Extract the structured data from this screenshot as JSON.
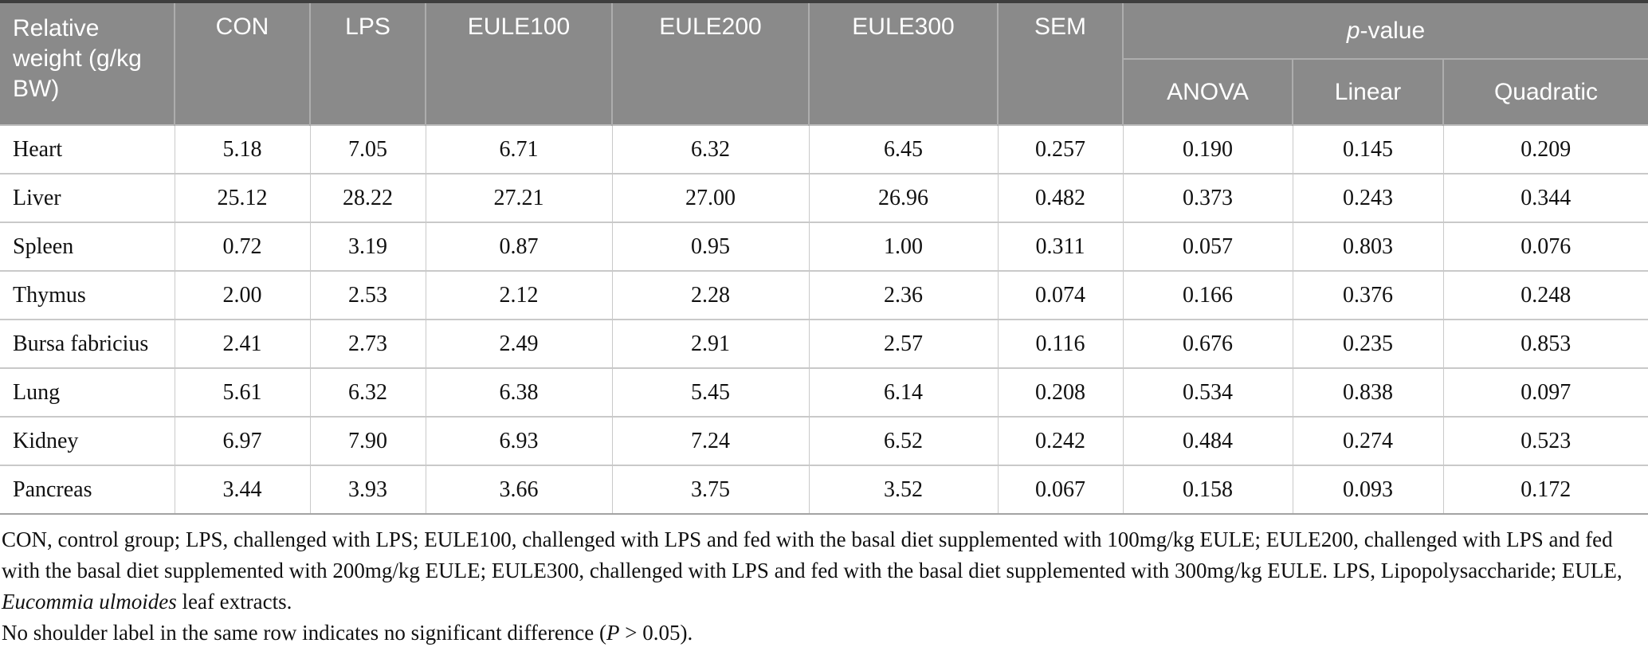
{
  "table": {
    "header": {
      "row_label": "Relative weight (g/kg BW)",
      "columns": [
        "CON",
        "LPS",
        "EULE100",
        "EULE200",
        "EULE300",
        "SEM"
      ],
      "p_value": {
        "italic": "p",
        "rest": "-value",
        "subcolumns": [
          "ANOVA",
          "Linear",
          "Quadratic"
        ]
      }
    },
    "rows": [
      {
        "organ": "Heart",
        "values": [
          "5.18",
          "7.05",
          "6.71",
          "6.32",
          "6.45",
          "0.257",
          "0.190",
          "0.145",
          "0.209"
        ]
      },
      {
        "organ": "Liver",
        "values": [
          "25.12",
          "28.22",
          "27.21",
          "27.00",
          "26.96",
          "0.482",
          "0.373",
          "0.243",
          "0.344"
        ]
      },
      {
        "organ": "Spleen",
        "values": [
          "0.72",
          "3.19",
          "0.87",
          "0.95",
          "1.00",
          "0.311",
          "0.057",
          "0.803",
          "0.076"
        ]
      },
      {
        "organ": "Thymus",
        "values": [
          "2.00",
          "2.53",
          "2.12",
          "2.28",
          "2.36",
          "0.074",
          "0.166",
          "0.376",
          "0.248"
        ]
      },
      {
        "organ": "Bursa fabricius",
        "values": [
          "2.41",
          "2.73",
          "2.49",
          "2.91",
          "2.57",
          "0.116",
          "0.676",
          "0.235",
          "0.853"
        ]
      },
      {
        "organ": "Lung",
        "values": [
          "5.61",
          "6.32",
          "6.38",
          "5.45",
          "6.14",
          "0.208",
          "0.534",
          "0.838",
          "0.097"
        ]
      },
      {
        "organ": "Kidney",
        "values": [
          "6.97",
          "7.90",
          "6.93",
          "7.24",
          "6.52",
          "0.242",
          "0.484",
          "0.274",
          "0.523"
        ]
      },
      {
        "organ": "Pancreas",
        "values": [
          "3.44",
          "3.93",
          "3.66",
          "3.75",
          "3.52",
          "0.067",
          "0.158",
          "0.093",
          "0.172"
        ]
      }
    ]
  },
  "footnotes": {
    "abbrev_part1": "CON, control group; LPS, challenged with LPS; EULE100, challenged with LPS and fed with the basal diet supplemented with 100mg/kg EULE; EULE200, challenged with LPS and fed with the basal diet supplemented with 200mg/kg EULE; EULE300, challenged with LPS and fed with the basal diet supplemented with 300mg/kg EULE. LPS, Lipopolysaccharide; EULE, ",
    "abbrev_italic": "Eucommia ulmoides",
    "abbrev_part2": " leaf extracts.",
    "significance_part1": "No shoulder label in the same row indicates no significant difference (",
    "significance_italic": "P",
    "significance_part2": " > 0.05)."
  },
  "colors": {
    "header_bg": "#8a8a8a",
    "header_text": "#ffffff",
    "header_divider": "#adadad",
    "top_border": "#3e3e3e",
    "grid_line": "#c9c9c9",
    "body_text": "#111111",
    "body_bg": "#ffffff"
  }
}
